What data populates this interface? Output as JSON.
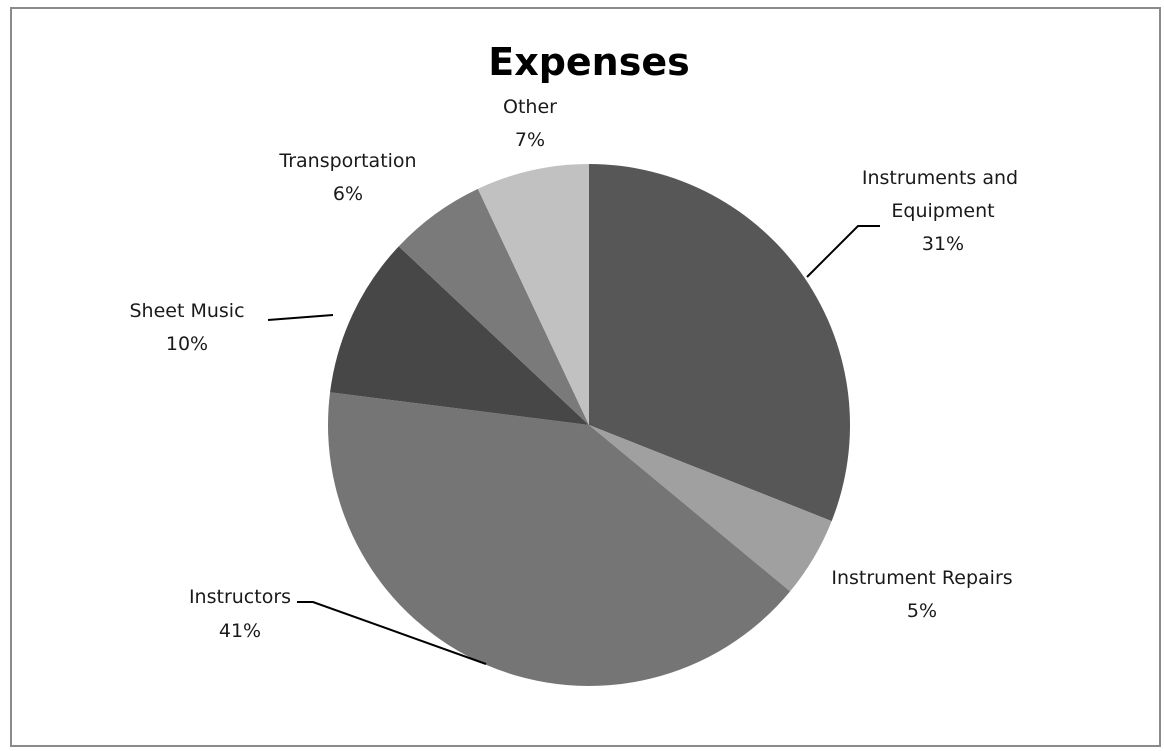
{
  "chart_data": {
    "type": "pie",
    "title": "Expenses",
    "start_angle_deg": 0,
    "direction": "clockwise",
    "slices": [
      {
        "label": "Instruments and Equipment",
        "percent_text": "31%",
        "value": 31,
        "color": "#575757"
      },
      {
        "label": "Instrument Repairs",
        "percent_text": "5%",
        "value": 5,
        "color": "#a0a0a0"
      },
      {
        "label": "Instructors",
        "percent_text": "41%",
        "value": 41,
        "color": "#757575"
      },
      {
        "label": "Sheet Music",
        "percent_text": "10%",
        "value": 10,
        "color": "#474747"
      },
      {
        "label": "Transportation",
        "percent_text": "6%",
        "value": 6,
        "color": "#7a7a7a"
      },
      {
        "label": "Other",
        "percent_text": "7%",
        "value": 7,
        "color": "#c1c1c1"
      }
    ],
    "legend": "none"
  }
}
